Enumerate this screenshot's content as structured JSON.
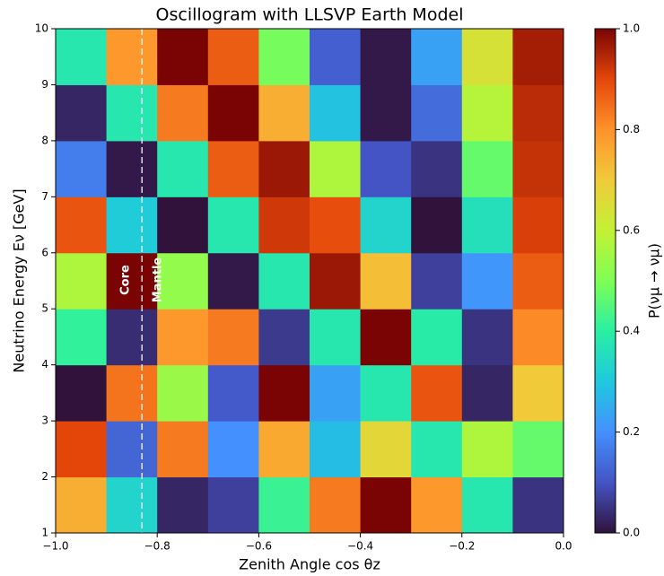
{
  "chart_data": {
    "type": "heatmap",
    "title": "Oscillogram with LLSVP Earth Model",
    "x_label": "Zenith Angle cos θz",
    "y_label": "Neutrino Energy Eν [GeV]",
    "colorbar_label": "P(νμ → νμ)",
    "xbins": [
      -1.0,
      -0.9,
      -0.8,
      -0.7,
      -0.6,
      -0.5,
      -0.4,
      -0.3,
      -0.2,
      -0.1,
      0.0
    ],
    "ybins": [
      1,
      2,
      3,
      4,
      5,
      6,
      7,
      8,
      9,
      10
    ],
    "z": [
      [
        0.75,
        0.33,
        0.03,
        0.07,
        0.42,
        0.83,
        1.0,
        0.79,
        0.38,
        0.05
      ],
      [
        0.9,
        0.13,
        0.83,
        0.2,
        0.76,
        0.28,
        0.67,
        0.38,
        0.57,
        0.47
      ],
      [
        0.0,
        0.84,
        0.54,
        0.11,
        1.0,
        0.23,
        0.38,
        0.88,
        0.03,
        0.7
      ],
      [
        0.41,
        0.04,
        0.79,
        0.83,
        0.06,
        0.38,
        1.0,
        0.39,
        0.05,
        0.81
      ],
      [
        0.57,
        1.0,
        0.53,
        0.01,
        0.38,
        0.97,
        0.72,
        0.07,
        0.21,
        0.87
      ],
      [
        0.88,
        0.31,
        0.0,
        0.38,
        0.92,
        0.89,
        0.33,
        0.0,
        0.36,
        0.91
      ],
      [
        0.17,
        0.01,
        0.38,
        0.87,
        0.97,
        0.57,
        0.1,
        0.05,
        0.47,
        0.93
      ],
      [
        0.03,
        0.38,
        0.83,
        1.0,
        0.75,
        0.29,
        0.01,
        0.14,
        0.58,
        0.94
      ],
      [
        0.38,
        0.79,
        1.0,
        0.87,
        0.49,
        0.12,
        0.01,
        0.23,
        0.64,
        0.96
      ]
    ],
    "colormap": [
      "#30123b",
      "#4454c4",
      "#4490fe",
      "#1fc8de",
      "#29efa2",
      "#7eff55",
      "#c3f134",
      "#f1ca3a",
      "#fe922a",
      "#e4460a",
      "#7a0403"
    ],
    "zlim": [
      0.0,
      1.0
    ],
    "zticks": [
      {
        "value": 0.0,
        "label": "0.0"
      },
      {
        "value": 0.2,
        "label": "0.2"
      },
      {
        "value": 0.4,
        "label": "0.4"
      },
      {
        "value": 0.6,
        "label": "0.6"
      },
      {
        "value": 0.8,
        "label": "0.8"
      },
      {
        "value": 1.0,
        "label": "1.0"
      }
    ],
    "xlim": [
      -1.0,
      0.0
    ],
    "xticks": [
      {
        "value": -1.0,
        "label": "−1.0"
      },
      {
        "value": -0.8,
        "label": "−0.8"
      },
      {
        "value": -0.6,
        "label": "−0.6"
      },
      {
        "value": -0.4,
        "label": "−0.4"
      },
      {
        "value": -0.2,
        "label": "−0.2"
      },
      {
        "value": 0.0,
        "label": "0.0"
      }
    ],
    "ylim": [
      1,
      10
    ],
    "yticks": [
      1,
      2,
      3,
      4,
      5,
      6,
      7,
      8,
      9,
      10
    ],
    "boundary": {
      "x": -0.83,
      "left_label": "Core",
      "right_label": "Mantle"
    }
  }
}
